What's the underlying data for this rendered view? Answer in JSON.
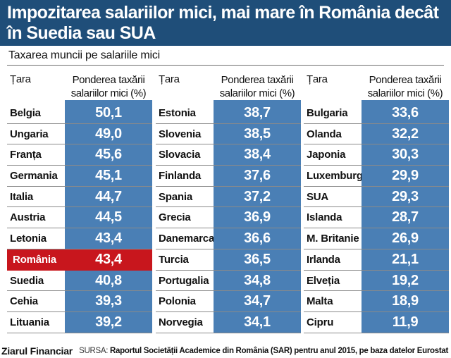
{
  "title": {
    "line1": "Impozitarea salariilor mici, mai mare în România decât",
    "line2": "în Suedia sau SUA"
  },
  "subtitle": "Taxarea muncii pe salariile mici",
  "columns": {
    "country_header": "Țara",
    "value_header_line1": "Ponderea taxării",
    "value_header_line2": "salariilor mici (%)"
  },
  "highlight_color": "#c8161d",
  "bar_color": "#4a7fb5",
  "title_bg_color": "#1f4e79",
  "chart_data": {
    "type": "table",
    "title": "Impozitarea salariilor mici, mai mare în România decât în Suedia sau SUA",
    "subtitle": "Taxarea muncii pe salariile mici",
    "columns": [
      "Țara",
      "Ponderea taxării salariilor mici (%)"
    ],
    "highlight": "România",
    "panels": [
      [
        {
          "country": "Belgia",
          "value": "50,1"
        },
        {
          "country": "Ungaria",
          "value": "49,0"
        },
        {
          "country": "Franța",
          "value": "45,6"
        },
        {
          "country": "Germania",
          "value": "45,1"
        },
        {
          "country": "Italia",
          "value": "44,7"
        },
        {
          "country": "Austria",
          "value": "44,5"
        },
        {
          "country": "Letonia",
          "value": "43,4"
        },
        {
          "country": "România",
          "value": "43,4"
        },
        {
          "country": "Suedia",
          "value": "40,8"
        },
        {
          "country": "Cehia",
          "value": "39,3"
        },
        {
          "country": "Lituania",
          "value": "39,2"
        }
      ],
      [
        {
          "country": "Estonia",
          "value": "38,7"
        },
        {
          "country": "Slovenia",
          "value": "38,5"
        },
        {
          "country": "Slovacia",
          "value": "38,4"
        },
        {
          "country": "Finlanda",
          "value": "37,6"
        },
        {
          "country": "Spania",
          "value": "37,2"
        },
        {
          "country": "Grecia",
          "value": "36,9"
        },
        {
          "country": "Danemarca",
          "value": "36,6"
        },
        {
          "country": "Turcia",
          "value": "36,5"
        },
        {
          "country": "Portugalia",
          "value": "34,8"
        },
        {
          "country": "Polonia",
          "value": "34,7"
        },
        {
          "country": "Norvegia",
          "value": "34,1"
        }
      ],
      [
        {
          "country": "Bulgaria",
          "value": "33,6"
        },
        {
          "country": "Olanda",
          "value": "32,2"
        },
        {
          "country": "Japonia",
          "value": "30,3"
        },
        {
          "country": "Luxemburg",
          "value": "29,9"
        },
        {
          "country": "SUA",
          "value": "29,3"
        },
        {
          "country": "Islanda",
          "value": "28,7"
        },
        {
          "country": "M. Britanie",
          "value": "26,9"
        },
        {
          "country": "Irlanda",
          "value": "21,1"
        },
        {
          "country": "Elveția",
          "value": "19,2"
        },
        {
          "country": "Malta",
          "value": "18,9"
        },
        {
          "country": "Cipru",
          "value": "11,9"
        }
      ]
    ]
  },
  "footer": {
    "publisher": "Ziarul Financiar",
    "source_label": "SURSA:",
    "source_text": "Raportul Societății Academice din România (SAR) pentru anul 2015, pe baza datelor Eurostat"
  }
}
